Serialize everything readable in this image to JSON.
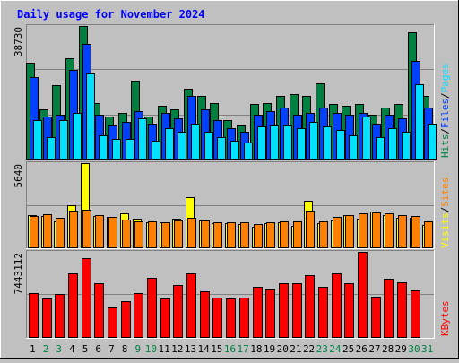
{
  "chart_data": [
    {
      "type": "bar",
      "title": "Daily usage for November 2024",
      "ymax_label": "38730",
      "legend": [
        "Pages",
        "Files",
        "Hits"
      ],
      "legend_colors": [
        "#00e0ff",
        "#0040ff",
        "#008040"
      ],
      "categories": [
        "1",
        "2",
        "3",
        "4",
        "5",
        "6",
        "7",
        "8",
        "9",
        "10",
        "11",
        "12",
        "13",
        "14",
        "15",
        "16",
        "17",
        "18",
        "19",
        "20",
        "21",
        "22",
        "23",
        "24",
        "25",
        "26",
        "27",
        "28",
        "29",
        "30",
        "31"
      ],
      "series": [
        {
          "name": "Hits",
          "color": "#008040",
          "values": [
            28000,
            14500,
            21500,
            29500,
            38730,
            16500,
            12500,
            13500,
            23000,
            12500,
            15500,
            14500,
            20500,
            18500,
            16500,
            11500,
            10000,
            16000,
            16500,
            18500,
            19000,
            18500,
            22000,
            16000,
            15500,
            16000,
            13000,
            15000,
            16000,
            37000,
            18500
          ]
        },
        {
          "name": "Files",
          "color": "#0040ff",
          "values": [
            24000,
            12500,
            13000,
            26000,
            33500,
            13000,
            10000,
            11000,
            14000,
            10500,
            13500,
            12000,
            18500,
            14500,
            11500,
            9000,
            8000,
            13000,
            14000,
            15000,
            13000,
            13500,
            15000,
            13500,
            13000,
            13500,
            10500,
            13000,
            12000,
            28500,
            15000
          ]
        },
        {
          "name": "Pages",
          "color": "#00e0ff",
          "values": [
            11500,
            6500,
            11500,
            13500,
            25000,
            7000,
            6000,
            6000,
            12000,
            5500,
            9000,
            8000,
            10500,
            8000,
            6500,
            5500,
            5000,
            9500,
            10000,
            10000,
            9000,
            11000,
            9500,
            8500,
            7000,
            12500,
            6500,
            9000,
            8000,
            21800,
            10500
          ]
        }
      ]
    },
    {
      "type": "bar",
      "ymax_label": "5640",
      "legend": [
        "Sites",
        "Visits"
      ],
      "legend_colors": [
        "#ff8000",
        "#ffff00"
      ],
      "categories": [
        "1",
        "2",
        "3",
        "4",
        "5",
        "6",
        "7",
        "8",
        "9",
        "10",
        "11",
        "12",
        "13",
        "14",
        "15",
        "16",
        "17",
        "18",
        "19",
        "20",
        "21",
        "22",
        "23",
        "24",
        "25",
        "26",
        "27",
        "28",
        "29",
        "30",
        "31"
      ],
      "series": [
        {
          "name": "Visits",
          "color": "#ffff00",
          "values": [
            2200,
            2150,
            1800,
            2850,
            5640,
            2150,
            2050,
            2300,
            1960,
            1720,
            1700,
            1950,
            3400,
            1870,
            1660,
            1650,
            1600,
            1440,
            1650,
            1720,
            1490,
            3150,
            1640,
            1870,
            2210,
            1950,
            2410,
            2220,
            2000,
            2000,
            1560
          ]
        },
        {
          "name": "Sites",
          "color": "#ff8000",
          "values": [
            2150,
            2250,
            2000,
            2470,
            2550,
            2200,
            2050,
            1900,
            1800,
            1790,
            1750,
            1850,
            2000,
            1820,
            1700,
            1700,
            1700,
            1600,
            1700,
            1800,
            1800,
            2500,
            1800,
            2100,
            2200,
            2300,
            2350,
            2300,
            2200,
            2150,
            1800
          ]
        }
      ]
    },
    {
      "type": "bar",
      "ymax_label": "7443112",
      "legend": [
        "KBytes"
      ],
      "legend_colors": [
        "#ff0000"
      ],
      "categories": [
        "1",
        "2",
        "3",
        "4",
        "5",
        "6",
        "7",
        "8",
        "9",
        "10",
        "11",
        "12",
        "13",
        "14",
        "15",
        "16",
        "17",
        "18",
        "19",
        "20",
        "21",
        "22",
        "23",
        "24",
        "25",
        "26",
        "27",
        "28",
        "29",
        "30",
        "31"
      ],
      "series": [
        {
          "name": "KBytes",
          "color": "#ff0000",
          "values": [
            3900,
            3400,
            3800,
            5600,
            6900,
            4700,
            2600,
            3200,
            3900,
            5200,
            3400,
            4600,
            5600,
            4000,
            3500,
            3400,
            3500,
            4400,
            4300,
            4700,
            4700,
            5400,
            4400,
            5600,
            4700,
            7443,
            3600,
            5100,
            4800,
            4100,
            0
          ]
        }
      ]
    }
  ],
  "weekend_day_color": "#008040",
  "weekday_color": "#000000",
  "weekend_days": [
    "2",
    "3",
    "9",
    "10",
    "16",
    "17",
    "23",
    "24",
    "30",
    "31"
  ]
}
